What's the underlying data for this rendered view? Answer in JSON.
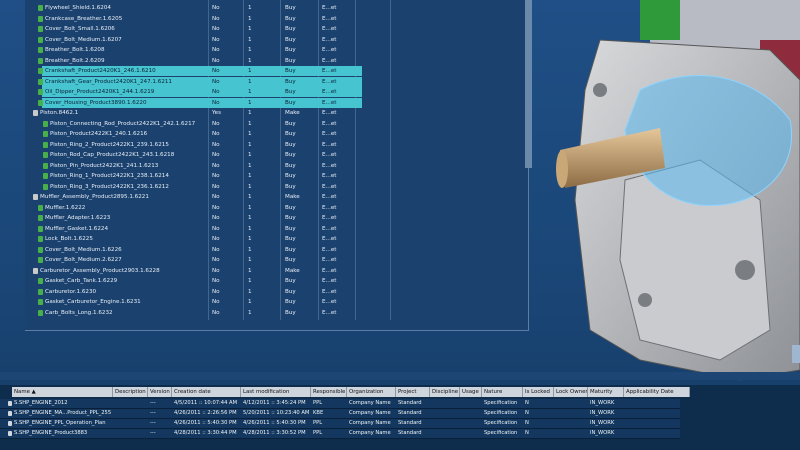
{
  "tree": {
    "rows": [
      {
        "level": 2,
        "cells": [
          "Flywheel_Shield.1.6204",
          "No",
          "1",
          "Buy",
          "E...et"
        ]
      },
      {
        "level": 2,
        "cells": [
          "Crankcase_Breather.1.6205",
          "No",
          "1",
          "Buy",
          "E...et"
        ]
      },
      {
        "level": 2,
        "cells": [
          "Cover_Bolt_Small.1.6206",
          "No",
          "1",
          "Buy",
          "E...et"
        ]
      },
      {
        "level": 2,
        "cells": [
          "Cover_Bolt_Medium.1.6207",
          "No",
          "1",
          "Buy",
          "E...et"
        ]
      },
      {
        "level": 2,
        "cells": [
          "Breather_Bolt.1.6208",
          "No",
          "1",
          "Buy",
          "E...et"
        ]
      },
      {
        "level": 2,
        "cells": [
          "Breather_Bolt.2.6209",
          "No",
          "1",
          "Buy",
          "E...et"
        ]
      },
      {
        "level": 2,
        "highlight": true,
        "cells": [
          "Crankshaft_Product2420K1_246.1.6210",
          "No",
          "1",
          "Buy",
          "E...et"
        ]
      },
      {
        "level": 2,
        "highlight": true,
        "cells": [
          "Crankshaft_Gear_Product2420K1_247.1.6211",
          "No",
          "1",
          "Buy",
          "E...et"
        ]
      },
      {
        "level": 2,
        "highlight": true,
        "cells": [
          "Oil_Dipper_Product2420K1_244.1.6219",
          "No",
          "1",
          "Buy",
          "E...et"
        ]
      },
      {
        "level": 2,
        "highlight": true,
        "cells": [
          "Cover_Housing_Product3890.1.6220",
          "No",
          "1",
          "Buy",
          "E...et"
        ]
      },
      {
        "level": 1,
        "cells": [
          "Piston.8462.1",
          "Yes",
          "1",
          "Make",
          "E...et"
        ]
      },
      {
        "level": 3,
        "cells": [
          "Piston_Connecting_Rod_Product2422K1_242.1.6217",
          "No",
          "1",
          "Buy",
          "E...et"
        ]
      },
      {
        "level": 3,
        "cells": [
          "Piston_Product2422K1_240.1.6216",
          "No",
          "1",
          "Buy",
          "E...et"
        ]
      },
      {
        "level": 3,
        "cells": [
          "Piston_Ring_2_Product2422K1_239.1.6215",
          "No",
          "1",
          "Buy",
          "E...et"
        ]
      },
      {
        "level": 3,
        "cells": [
          "Piston_Rod_Cap_Product2422K1_243.1.6218",
          "No",
          "1",
          "Buy",
          "E...et"
        ]
      },
      {
        "level": 3,
        "cells": [
          "Piston_Pin_Product2422K1_241.1.6213",
          "No",
          "1",
          "Buy",
          "E...et"
        ]
      },
      {
        "level": 3,
        "cells": [
          "Piston_Ring_1_Product2422K1_238.1.6214",
          "No",
          "1",
          "Buy",
          "E...et"
        ]
      },
      {
        "level": 3,
        "cells": [
          "Piston_Ring_3_Product2422K1_236.1.6212",
          "No",
          "1",
          "Buy",
          "E...et"
        ]
      },
      {
        "level": 1,
        "cells": [
          "Muffler_Assembly_Product2895.1.6221",
          "No",
          "1",
          "Make",
          "E...et"
        ]
      },
      {
        "level": 2,
        "cells": [
          "Muffler.1.6222",
          "No",
          "1",
          "Buy",
          "E...et"
        ]
      },
      {
        "level": 2,
        "cells": [
          "Muffler_Adapter.1.6223",
          "No",
          "1",
          "Buy",
          "E...et"
        ]
      },
      {
        "level": 2,
        "cells": [
          "Muffler_Gasket.1.6224",
          "No",
          "1",
          "Buy",
          "E...et"
        ]
      },
      {
        "level": 2,
        "cells": [
          "Lock_Bolt.1.6225",
          "No",
          "1",
          "Buy",
          "E...et"
        ]
      },
      {
        "level": 2,
        "cells": [
          "Cover_Bolt_Medium.1.6226",
          "No",
          "1",
          "Buy",
          "E...et"
        ]
      },
      {
        "level": 2,
        "cells": [
          "Cover_Bolt_Medium.2.6227",
          "No",
          "1",
          "Buy",
          "E...et"
        ]
      },
      {
        "level": 1,
        "cells": [
          "Carburetor_Assembly_Product2903.1.6228",
          "No",
          "1",
          "Make",
          "E...et"
        ]
      },
      {
        "level": 2,
        "cells": [
          "Gasket_Carb_Tank.1.6229",
          "No",
          "1",
          "Buy",
          "E...et"
        ]
      },
      {
        "level": 2,
        "cells": [
          "Carburetor.1.6230",
          "No",
          "1",
          "Buy",
          "E...et"
        ]
      },
      {
        "level": 2,
        "cells": [
          "Gasket_Carburetor_Engine.1.6231",
          "No",
          "1",
          "Buy",
          "E...et"
        ]
      },
      {
        "level": 2,
        "cells": [
          "Carb_Bolts_Long.1.6232",
          "No",
          "1",
          "Buy",
          "E...et"
        ]
      }
    ]
  },
  "grid": {
    "columns": [
      "Name ▲",
      "Description",
      "Version",
      "Creation date",
      "Last modification",
      "Responsible",
      "Organization",
      "Project",
      "Discipline",
      "Usage",
      "Nature",
      "Is Locked",
      "Lock Owner",
      "Maturity",
      "Applicability Date"
    ],
    "rows": [
      [
        "S.SHP_ENGINE_2012",
        "",
        "---",
        "4/5/2011 :: 10:07:44 AM",
        "4/12/2011 :: 3:45:24 PM",
        "PPL",
        "Company Name",
        "Standard",
        "",
        "",
        "Specification",
        "N",
        "",
        "IN_WORK",
        ""
      ],
      [
        "S.SHP_ENGINE_MA...Product_PPL_255",
        "",
        "---",
        "4/26/2011 :: 2:26:56 PM",
        "5/20/2011 :: 10:23:40 AM",
        "KBE",
        "Company Name",
        "Standard",
        "",
        "",
        "Specification",
        "N",
        "",
        "IN_WORK",
        ""
      ],
      [
        "S.SHP_ENGINE_PPL_Operation_Plan",
        "",
        "---",
        "4/26/2011 :: 5:40:30 PM",
        "4/26/2011 :: 5:40:30 PM",
        "PPL",
        "Company Name",
        "Standard",
        "",
        "",
        "Specification",
        "N",
        "",
        "IN_WORK",
        ""
      ],
      [
        "S.SHP_ENGINE_Product3883",
        "",
        "---",
        "4/28/2011 :: 3:30:44 PM",
        "4/28/2011 :: 3:30:52 PM",
        "PPL",
        "Company Name",
        "Standard",
        "",
        "",
        "Specification",
        "N",
        "",
        "IN_WORK",
        ""
      ]
    ]
  }
}
